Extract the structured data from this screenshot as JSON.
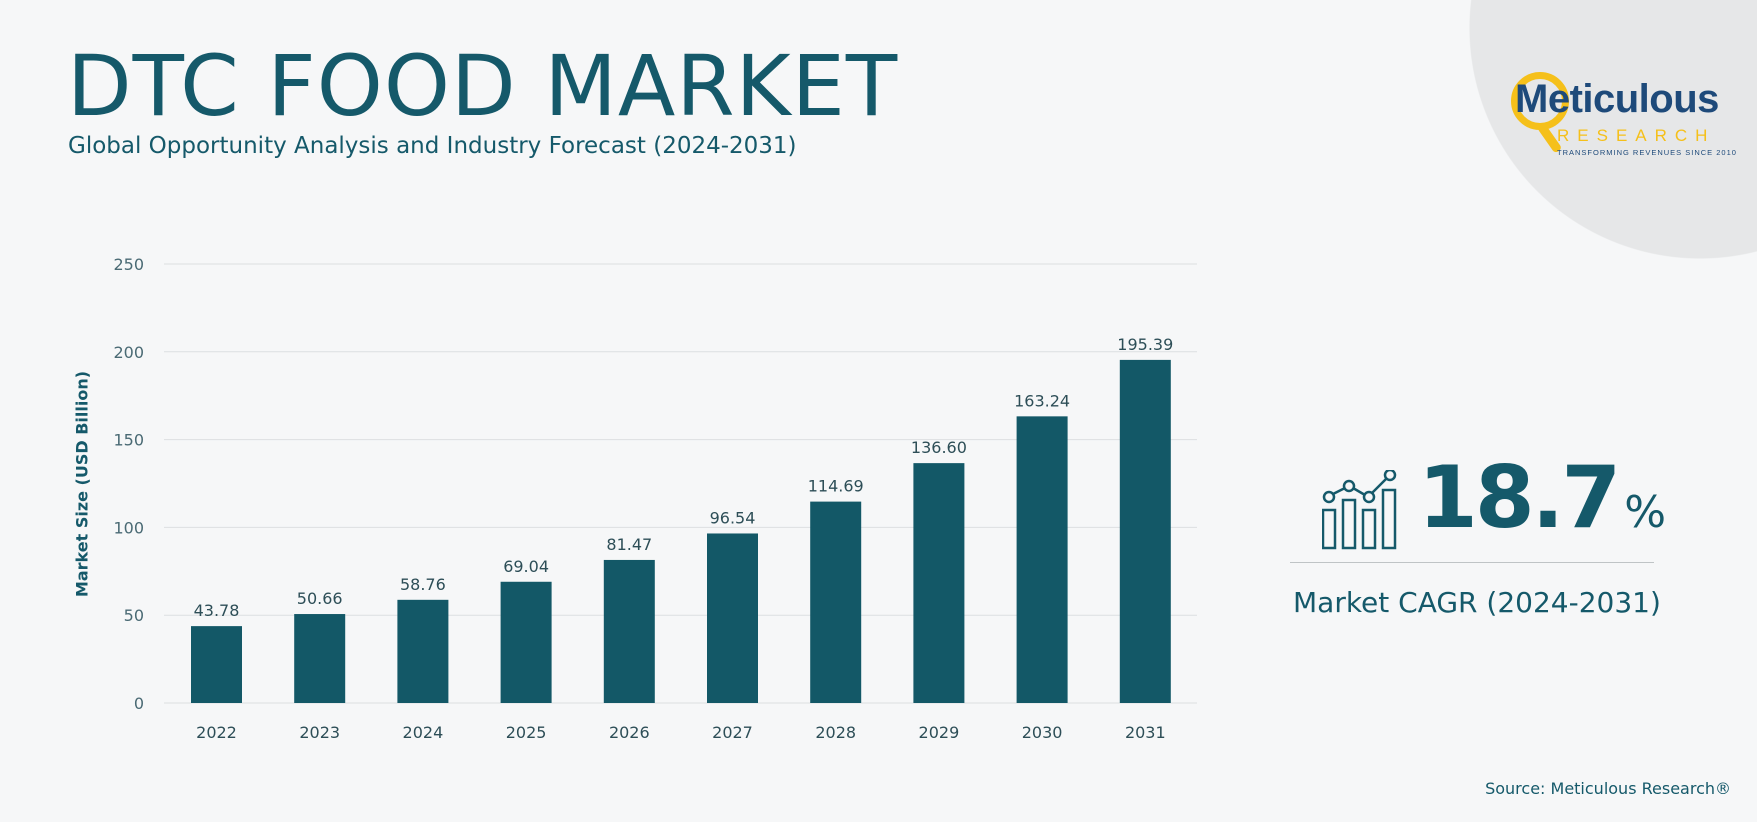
{
  "header": {
    "title": "DTC FOOD MARKET",
    "subtitle": "Global Opportunity Analysis and Industry Forecast (2024-2031)"
  },
  "logo": {
    "name": "Meticulous",
    "sub": "RESEARCH",
    "tagline": "TRANSFORMING REVENUES SINCE 2010"
  },
  "colors": {
    "bar": "#135867",
    "text": "#15596a",
    "grid": "#dcdfe1",
    "accent": "#f5c01a"
  },
  "chart_data": {
    "type": "bar",
    "categories": [
      "2022",
      "2023",
      "2024",
      "2025",
      "2026",
      "2027",
      "2028",
      "2029",
      "2030",
      "2031"
    ],
    "values": [
      43.78,
      50.66,
      58.76,
      69.04,
      81.47,
      96.54,
      114.69,
      136.6,
      163.24,
      195.39
    ],
    "value_labels": [
      "43.78",
      "50.66",
      "58.76",
      "69.04",
      "81.47",
      "96.54",
      "114.69",
      "136.60",
      "163.24",
      "195.39"
    ],
    "title": "",
    "xlabel": "",
    "ylabel": "Market Size (USD Billion)",
    "ylim": [
      0,
      250
    ],
    "yticks": [
      "0",
      "50",
      "100",
      "150",
      "200",
      "250"
    ],
    "grid": true,
    "legend": "none"
  },
  "cagr": {
    "value": "18.7",
    "unit": "%",
    "label": "Market CAGR (2024-2031)",
    "icon": "bar-chart-trend-icon"
  },
  "source": "Source: Meticulous Research®"
}
